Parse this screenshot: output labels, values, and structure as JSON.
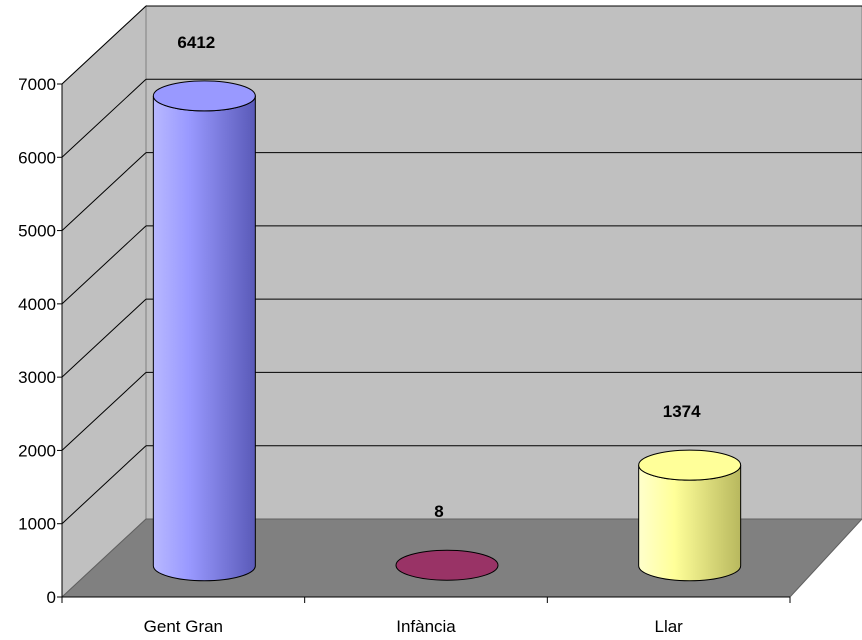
{
  "chart_data": {
    "type": "bar",
    "style": "3d-cylinder",
    "categories": [
      "Gent Gran",
      "Infància",
      "Llar"
    ],
    "values": [
      6412,
      8,
      1374
    ],
    "data_labels": [
      "6412",
      "8",
      "1374"
    ],
    "yticks": [
      "0",
      "1000",
      "2000",
      "3000",
      "4000",
      "5000",
      "6000",
      "7000"
    ],
    "ylim": [
      0,
      7000
    ],
    "grid": true,
    "legend": "none",
    "colors": {
      "Gent Gran": "#9999ff",
      "Infància": "#993366",
      "Llar": "#ffff99",
      "back_wall": "#c0c0c0",
      "floor": "#808080"
    }
  }
}
